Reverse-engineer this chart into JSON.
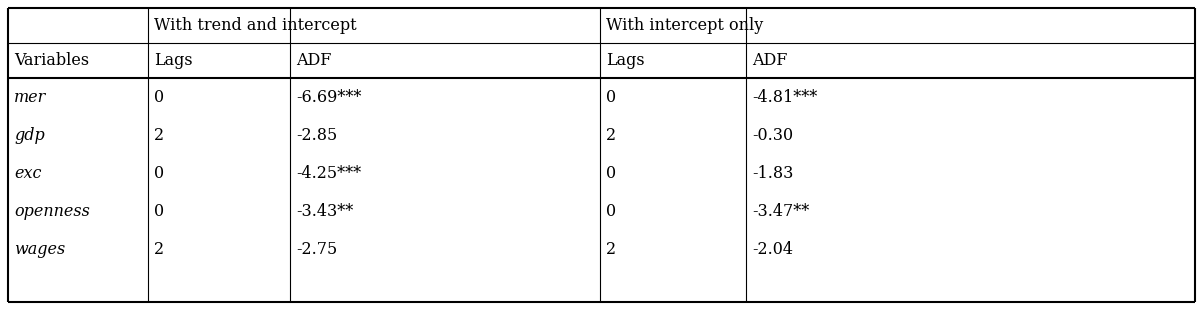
{
  "col_header_row1": [
    "",
    "With trend and intercept",
    "With intercept only"
  ],
  "col_header_row2": [
    "Variables",
    "Lags",
    "ADF",
    "Lags",
    "ADF"
  ],
  "rows": [
    [
      "mer",
      "0",
      "-6.69***",
      "0",
      "-4.81***"
    ],
    [
      "gdp",
      "2",
      "-2.85",
      "2",
      "-0.30"
    ],
    [
      "exc",
      "0",
      "-4.25***",
      "0",
      "-1.83"
    ],
    [
      "openness",
      "0",
      "-3.43**",
      "0",
      "-3.47**"
    ],
    [
      "wages",
      "2",
      "-2.75",
      "2",
      "-2.04"
    ]
  ],
  "bg_color": "#ffffff",
  "line_color": "#000000",
  "font_size": 11.5,
  "font_family": "DejaVu Serif"
}
